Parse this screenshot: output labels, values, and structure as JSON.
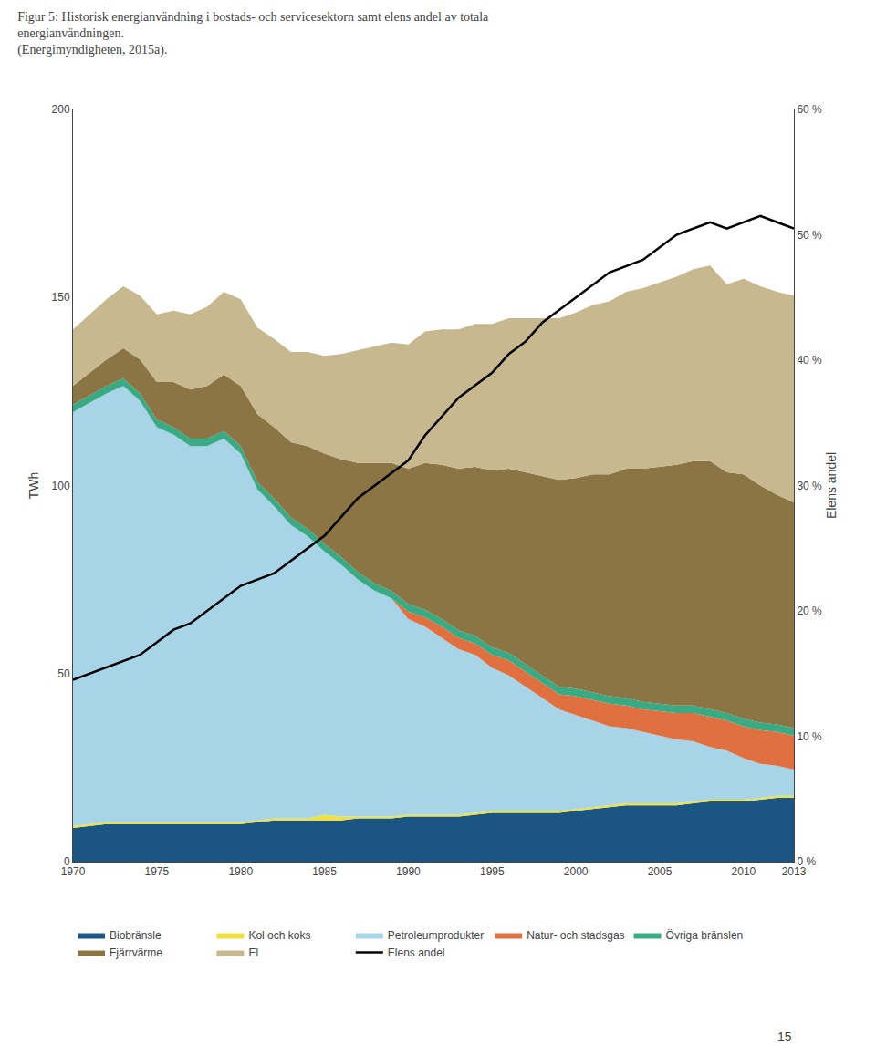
{
  "chart_data": {
    "type": "area",
    "stacked": true,
    "title": "Figur 5: Historisk energianvändning i bostads- och servicesektorn samt elens andel av totala energianvändningen.",
    "subtitle": "(Energimyndigheten, 2015a).",
    "x": [
      1970,
      1971,
      1972,
      1973,
      1974,
      1975,
      1976,
      1977,
      1978,
      1979,
      1980,
      1981,
      1982,
      1983,
      1984,
      1985,
      1986,
      1987,
      1988,
      1989,
      1990,
      1991,
      1992,
      1993,
      1994,
      1995,
      1996,
      1997,
      1998,
      1999,
      2000,
      2001,
      2002,
      2003,
      2004,
      2005,
      2006,
      2007,
      2008,
      2009,
      2010,
      2011,
      2012,
      2013
    ],
    "xlim": [
      1970,
      2013
    ],
    "xticks": [
      1970,
      1975,
      1980,
      1985,
      1990,
      1995,
      2000,
      2005,
      2010,
      2013
    ],
    "ylabel": "TWh",
    "ylim": [
      0,
      200
    ],
    "yticks": [
      0,
      50,
      100,
      150,
      200
    ],
    "y2label": "Elens andel",
    "y2lim": [
      0,
      60
    ],
    "y2ticks": [
      {
        "value": 0,
        "label": "0 %"
      },
      {
        "value": 10,
        "label": "10 %"
      },
      {
        "value": 20,
        "label": "20 %"
      },
      {
        "value": 30,
        "label": "30 %"
      },
      {
        "value": 40,
        "label": "40 %"
      },
      {
        "value": 50,
        "label": "50 %"
      },
      {
        "value": 60,
        "label": "60 %"
      }
    ],
    "grid": false,
    "legend": "bottom",
    "annotations": [
      "15"
    ],
    "series": [
      {
        "name": "Biobränsle",
        "color": "#1b5583",
        "values": [
          9,
          9.5,
          10,
          10,
          10,
          10,
          10,
          10,
          10,
          10,
          10,
          10.5,
          11,
          11,
          11,
          11,
          11,
          11.5,
          11.5,
          11.5,
          12,
          12,
          12,
          12,
          12.5,
          13,
          13,
          13,
          13,
          13,
          13.5,
          14,
          14.5,
          15,
          15,
          15,
          15,
          15.5,
          16,
          16,
          16,
          16.5,
          17,
          17
        ]
      },
      {
        "name": "Kol och koks",
        "color": "#f0e040",
        "values": [
          0.5,
          0.5,
          0.5,
          0.5,
          0.5,
          0.5,
          0.5,
          0.5,
          0.5,
          0.5,
          0.5,
          0.5,
          0.5,
          0.5,
          0.5,
          1.5,
          1.0,
          0.5,
          0.5,
          0.5,
          0.5,
          0.5,
          0.5,
          0.5,
          0.5,
          0.5,
          0.5,
          0.5,
          0.5,
          0.5,
          0.5,
          0.5,
          0.5,
          0.5,
          0.5,
          0.5,
          0.5,
          0.5,
          0.5,
          0.5,
          0.5,
          0.5,
          0.5,
          0.5
        ]
      },
      {
        "name": "Petroleumprodukter",
        "color": "#a8d4e8",
        "values": [
          110,
          112,
          114,
          116,
          112,
          105,
          103,
          100,
          100,
          102,
          98,
          88,
          83,
          78,
          75,
          70,
          67,
          63,
          60,
          58,
          52,
          50,
          47,
          44,
          42,
          38,
          36,
          33,
          30,
          27,
          25,
          23,
          21,
          20,
          19,
          18,
          17,
          16,
          14,
          13,
          11,
          9,
          8,
          7
        ]
      },
      {
        "name": "Natur- och stadsgas",
        "color": "#e07040",
        "values": [
          0,
          0,
          0,
          0,
          0,
          0,
          0,
          0,
          0,
          0,
          0,
          0,
          0,
          0,
          0,
          0,
          0,
          0,
          0,
          0,
          2,
          2.5,
          3,
          3,
          3,
          3.5,
          4,
          4,
          4,
          4,
          5,
          5.5,
          6,
          6,
          6,
          6.5,
          7,
          7.5,
          8,
          8,
          8.5,
          9,
          9,
          9
        ]
      },
      {
        "name": "Övriga bränslen",
        "color": "#3aaa85",
        "values": [
          2,
          2,
          2,
          2,
          2,
          2,
          2,
          2,
          2,
          2,
          2,
          2,
          2,
          2,
          2,
          2,
          2,
          2,
          2,
          2,
          2,
          2,
          2,
          2,
          2,
          2,
          2,
          2,
          2,
          2,
          2,
          2,
          2,
          2,
          2,
          2,
          2,
          2,
          2,
          2,
          2,
          2,
          2,
          2
        ]
      },
      {
        "name": "Fjärrvärme",
        "color": "#8b7545",
        "values": [
          5,
          6,
          7,
          8,
          9,
          10,
          12,
          13,
          14,
          15,
          16,
          18,
          19,
          20,
          22,
          24,
          26,
          29,
          32,
          34,
          36,
          39,
          41,
          43,
          45,
          47,
          49,
          51,
          53,
          55,
          56,
          58,
          59,
          61,
          62,
          63,
          64,
          65,
          66,
          64,
          65,
          63,
          61,
          60
        ]
      },
      {
        "name": "El",
        "color": "#c8b890",
        "values": [
          15,
          15.5,
          16,
          16.5,
          17,
          18,
          19,
          20,
          21,
          22,
          23,
          23,
          23.5,
          24,
          25,
          26,
          28,
          30,
          31,
          32,
          33,
          35,
          36,
          37,
          38,
          39,
          40,
          41,
          42,
          43,
          44,
          45,
          46,
          47,
          48,
          49,
          50,
          51,
          52,
          50,
          52,
          53,
          54,
          55
        ]
      },
      {
        "name": "Elens andel",
        "type": "line",
        "axis": "y2",
        "color": "#000000",
        "values": [
          14.5,
          15,
          15.5,
          16,
          16.5,
          17.5,
          18.5,
          19,
          20,
          21,
          22,
          22.5,
          23,
          24,
          25,
          26,
          27.5,
          29,
          30,
          31,
          32,
          34,
          35.5,
          37,
          38,
          39,
          40.5,
          41.5,
          43,
          44,
          45,
          46,
          47,
          47.5,
          48,
          49,
          50,
          50.5,
          51,
          50.5,
          51,
          51.5,
          51,
          50.5
        ]
      }
    ]
  }
}
